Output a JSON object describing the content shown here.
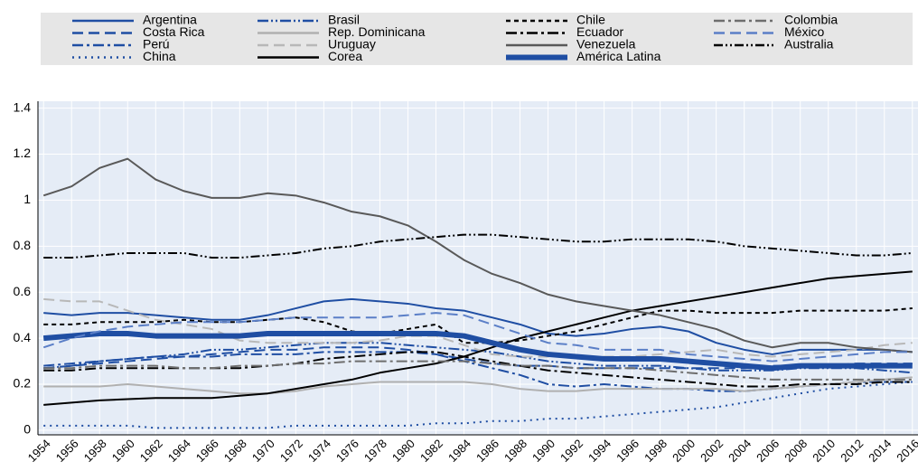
{
  "chart_data": {
    "type": "line",
    "x": [
      1954,
      1956,
      1958,
      1960,
      1962,
      1964,
      1966,
      1968,
      1970,
      1972,
      1974,
      1976,
      1978,
      1980,
      1982,
      1984,
      1986,
      1988,
      1990,
      1992,
      1994,
      1996,
      1998,
      2000,
      2002,
      2004,
      2006,
      2008,
      2010,
      2012,
      2014,
      2016
    ],
    "xlim": [
      1953.6,
      2016.4
    ],
    "xticks": [
      1954,
      1956,
      1958,
      1960,
      1962,
      1964,
      1966,
      1968,
      1970,
      1972,
      1974,
      1976,
      1978,
      1980,
      1982,
      1984,
      1986,
      1988,
      1990,
      1992,
      1994,
      1996,
      1998,
      2000,
      2002,
      2004,
      2006,
      2008,
      2010,
      2012,
      2014,
      2016
    ],
    "ylim": [
      -0.02,
      1.43
    ],
    "yticks": [
      0,
      0.2,
      0.4,
      0.6,
      0.8,
      1,
      1.2,
      1.4
    ],
    "grid": true,
    "series": [
      {
        "name": "Argentina",
        "color": "#1f4ea3",
        "dash": "none",
        "width": 2,
        "values": [
          0.51,
          0.5,
          0.51,
          0.51,
          0.5,
          0.49,
          0.48,
          0.48,
          0.5,
          0.53,
          0.56,
          0.57,
          0.56,
          0.55,
          0.53,
          0.52,
          0.49,
          0.46,
          0.42,
          0.41,
          0.42,
          0.44,
          0.45,
          0.43,
          0.38,
          0.35,
          0.33,
          0.35,
          0.35,
          0.35,
          0.35,
          0.34
        ]
      },
      {
        "name": "Costa Rica",
        "color": "#1f4ea3",
        "dash": "12,6",
        "width": 2,
        "values": [
          0.27,
          0.28,
          0.29,
          0.3,
          0.31,
          0.32,
          0.33,
          0.34,
          0.35,
          0.35,
          0.36,
          0.36,
          0.36,
          0.35,
          0.33,
          0.31,
          0.29,
          0.28,
          0.28,
          0.27,
          0.27,
          0.27,
          0.27,
          0.27,
          0.27,
          0.27,
          0.28,
          0.28,
          0.28,
          0.29,
          0.29,
          0.29
        ]
      },
      {
        "name": "Perú",
        "color": "#1f4ea3",
        "dash": "12,4,3,4",
        "width": 2,
        "values": [
          0.28,
          0.29,
          0.3,
          0.31,
          0.32,
          0.32,
          0.32,
          0.33,
          0.33,
          0.33,
          0.34,
          0.34,
          0.34,
          0.34,
          0.33,
          0.3,
          0.27,
          0.24,
          0.2,
          0.19,
          0.2,
          0.19,
          0.18,
          0.18,
          0.17,
          0.17,
          0.18,
          0.19,
          0.2,
          0.21,
          0.21,
          0.21
        ]
      },
      {
        "name": "China",
        "color": "#1f4ea3",
        "dash": "2,5",
        "width": 2,
        "values": [
          0.02,
          0.02,
          0.02,
          0.02,
          0.01,
          0.01,
          0.01,
          0.01,
          0.01,
          0.02,
          0.02,
          0.02,
          0.02,
          0.02,
          0.03,
          0.03,
          0.04,
          0.04,
          0.05,
          0.05,
          0.06,
          0.07,
          0.08,
          0.09,
          0.1,
          0.12,
          0.14,
          0.16,
          0.18,
          0.19,
          0.2,
          0.21
        ]
      },
      {
        "name": "Brasil",
        "color": "#1f4ea3",
        "dash": "12,3,2,3,2,3",
        "width": 2,
        "values": [
          0.27,
          0.28,
          0.3,
          0.31,
          0.32,
          0.33,
          0.35,
          0.35,
          0.36,
          0.37,
          0.38,
          0.38,
          0.38,
          0.37,
          0.36,
          0.35,
          0.34,
          0.32,
          0.3,
          0.29,
          0.28,
          0.28,
          0.28,
          0.27,
          0.26,
          0.26,
          0.26,
          0.27,
          0.27,
          0.27,
          0.26,
          0.25
        ]
      },
      {
        "name": "Rep. Dominicana",
        "color": "#b0b0b0",
        "dash": "none",
        "width": 2,
        "values": [
          0.19,
          0.19,
          0.19,
          0.2,
          0.19,
          0.18,
          0.17,
          0.16,
          0.16,
          0.17,
          0.19,
          0.2,
          0.21,
          0.21,
          0.21,
          0.21,
          0.2,
          0.18,
          0.17,
          0.17,
          0.18,
          0.18,
          0.18,
          0.18,
          0.18,
          0.17,
          0.18,
          0.19,
          0.2,
          0.21,
          0.22,
          0.23
        ]
      },
      {
        "name": "Uruguay",
        "color": "#b8b8b8",
        "dash": "12,6",
        "width": 2,
        "values": [
          0.57,
          0.56,
          0.56,
          0.52,
          0.48,
          0.46,
          0.44,
          0.39,
          0.38,
          0.38,
          0.38,
          0.38,
          0.39,
          0.41,
          0.41,
          0.37,
          0.33,
          0.32,
          0.32,
          0.32,
          0.32,
          0.32,
          0.33,
          0.34,
          0.35,
          0.33,
          0.32,
          0.33,
          0.34,
          0.35,
          0.37,
          0.38
        ]
      },
      {
        "name": "Corea",
        "color": "#000000",
        "dash": "none",
        "width": 2,
        "values": [
          0.11,
          0.12,
          0.13,
          0.135,
          0.14,
          0.14,
          0.14,
          0.15,
          0.16,
          0.18,
          0.2,
          0.22,
          0.25,
          0.27,
          0.29,
          0.32,
          0.36,
          0.4,
          0.43,
          0.46,
          0.49,
          0.52,
          0.54,
          0.56,
          0.58,
          0.6,
          0.62,
          0.64,
          0.66,
          0.67,
          0.68,
          0.69
        ]
      },
      {
        "name": "Chile",
        "color": "#000000",
        "dash": "5,4",
        "width": 2,
        "values": [
          0.46,
          0.46,
          0.47,
          0.47,
          0.47,
          0.48,
          0.47,
          0.47,
          0.48,
          0.49,
          0.47,
          0.43,
          0.42,
          0.44,
          0.46,
          0.38,
          0.38,
          0.39,
          0.41,
          0.43,
          0.46,
          0.49,
          0.52,
          0.52,
          0.51,
          0.51,
          0.51,
          0.52,
          0.52,
          0.52,
          0.52,
          0.53
        ]
      },
      {
        "name": "Ecuador",
        "color": "#000000",
        "dash": "12,4,3,4",
        "width": 2,
        "values": [
          0.26,
          0.26,
          0.27,
          0.27,
          0.27,
          0.27,
          0.27,
          0.27,
          0.28,
          0.29,
          0.31,
          0.32,
          0.33,
          0.34,
          0.34,
          0.32,
          0.3,
          0.28,
          0.26,
          0.25,
          0.24,
          0.23,
          0.22,
          0.21,
          0.2,
          0.19,
          0.19,
          0.2,
          0.2,
          0.2,
          0.21,
          0.21
        ]
      },
      {
        "name": "Venezuela",
        "color": "#595959",
        "dash": "none",
        "width": 2,
        "values": [
          1.02,
          1.06,
          1.14,
          1.18,
          1.09,
          1.04,
          1.01,
          1.01,
          1.03,
          1.02,
          0.99,
          0.95,
          0.93,
          0.89,
          0.82,
          0.74,
          0.68,
          0.64,
          0.59,
          0.56,
          0.54,
          0.52,
          0.5,
          0.47,
          0.44,
          0.39,
          0.36,
          0.38,
          0.38,
          0.36,
          0.35,
          0.34
        ]
      },
      {
        "name": "América Latina",
        "color": "#1f4ea3",
        "dash": "none",
        "width": 6,
        "values": [
          0.4,
          0.41,
          0.42,
          0.42,
          0.41,
          0.41,
          0.41,
          0.41,
          0.42,
          0.42,
          0.42,
          0.42,
          0.42,
          0.42,
          0.42,
          0.41,
          0.38,
          0.35,
          0.33,
          0.32,
          0.31,
          0.31,
          0.31,
          0.3,
          0.29,
          0.28,
          0.27,
          0.28,
          0.28,
          0.28,
          0.28,
          0.28
        ]
      },
      {
        "name": "Colombia",
        "color": "#6e6e6e",
        "dash": "12,4,3,4",
        "width": 2,
        "values": [
          0.27,
          0.27,
          0.28,
          0.28,
          0.28,
          0.27,
          0.27,
          0.28,
          0.28,
          0.29,
          0.29,
          0.3,
          0.3,
          0.3,
          0.3,
          0.3,
          0.29,
          0.28,
          0.28,
          0.27,
          0.27,
          0.27,
          0.26,
          0.25,
          0.24,
          0.23,
          0.22,
          0.22,
          0.22,
          0.22,
          0.22,
          0.22
        ]
      },
      {
        "name": "México",
        "color": "#5b7fc7",
        "dash": "12,6",
        "width": 2,
        "values": [
          0.36,
          0.4,
          0.43,
          0.45,
          0.46,
          0.47,
          0.47,
          0.47,
          0.48,
          0.49,
          0.49,
          0.49,
          0.49,
          0.5,
          0.51,
          0.5,
          0.46,
          0.42,
          0.38,
          0.37,
          0.35,
          0.35,
          0.35,
          0.33,
          0.32,
          0.31,
          0.3,
          0.31,
          0.32,
          0.33,
          0.34,
          0.34
        ]
      },
      {
        "name": "Australia",
        "color": "#000000",
        "dash": "10,3,2,3,2,3",
        "width": 2,
        "values": [
          0.75,
          0.75,
          0.76,
          0.77,
          0.77,
          0.77,
          0.75,
          0.75,
          0.76,
          0.77,
          0.79,
          0.8,
          0.82,
          0.83,
          0.84,
          0.85,
          0.85,
          0.84,
          0.83,
          0.82,
          0.82,
          0.83,
          0.83,
          0.83,
          0.82,
          0.8,
          0.79,
          0.78,
          0.77,
          0.76,
          0.76,
          0.77
        ]
      }
    ]
  }
}
